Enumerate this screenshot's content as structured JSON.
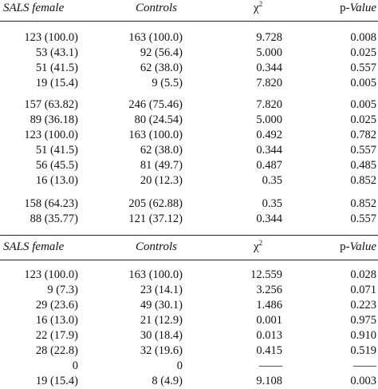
{
  "table1": {
    "header": {
      "col1": "SALS female",
      "col2": "Controls",
      "col3": "χ",
      "col3_sup": "2",
      "col4_prefix": "p-",
      "col4_italic": "Value"
    },
    "groups": [
      [
        [
          "123 (100.0)",
          "163 (100.0)",
          "9.728",
          "0.008"
        ],
        [
          "53 (43.1)",
          "92 (56.4)",
          "5.000",
          "0.025"
        ],
        [
          "51 (41.5)",
          "62 (38.0)",
          "0.344",
          "0.557"
        ],
        [
          "19 (15.4)",
          "9 (5.5)",
          "7.820",
          "0.005"
        ]
      ],
      [
        [
          "157 (63.82)",
          "246 (75.46)",
          "7.820",
          "0.005"
        ],
        [
          "89 (36.18)",
          "80 (24.54)",
          "5.000",
          "0.025"
        ],
        [
          "123 (100.0)",
          "163 (100.0)",
          "0.492",
          "0.782"
        ],
        [
          "51 (41.5)",
          "62 (38.0)",
          "0.344",
          "0.557"
        ],
        [
          "56 (45.5)",
          "81 (49.7)",
          "0.487",
          "0.485"
        ],
        [
          "16 (13.0)",
          "20 (12.3)",
          "0.35",
          "0.852"
        ]
      ],
      [
        [
          "158 (64.23)",
          "205 (62.88)",
          "0.35",
          "0.852"
        ],
        [
          "88 (35.77)",
          "121 (37.12)",
          "0.344",
          "0.557"
        ]
      ]
    ]
  },
  "table2": {
    "header": {
      "col1": "SALS female",
      "col2": "Controls",
      "col3": "χ",
      "col3_sup": "2",
      "col4_prefix": "p-",
      "col4_italic": "Value"
    },
    "rows": [
      [
        "123 (100.0)",
        "163 (100.0)",
        "12.559",
        "0.028"
      ],
      [
        "9 (7.3)",
        "23 (14.1)",
        "3.256",
        "0.071"
      ],
      [
        "29 (23.6)",
        "49 (30.1)",
        "1.486",
        "0.223"
      ],
      [
        "16 (13.0)",
        "21 (12.9)",
        "0.001",
        "0.975"
      ],
      [
        "22 (17.9)",
        "30 (18.4)",
        "0.013",
        "0.910"
      ],
      [
        "28 (22.8)",
        "32 (19.6)",
        "0.415",
        "0.519"
      ],
      [
        "0",
        "0",
        "——",
        "——"
      ],
      [
        "19 (15.4)",
        "8 (4.9)",
        "9.108",
        "0.003"
      ]
    ]
  }
}
